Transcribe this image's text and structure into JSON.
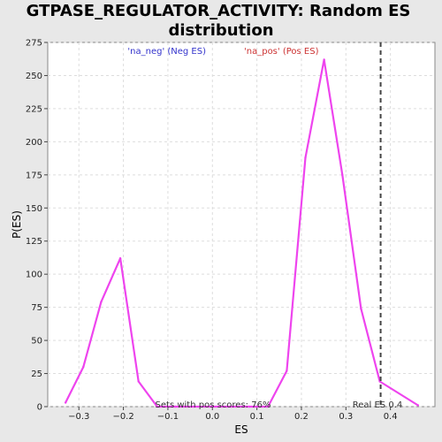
{
  "chart_data": {
    "type": "line",
    "title_line1": "GTPASE_REGULATOR_ACTIVITY: Random ES",
    "title_line2": "distribution",
    "xlabel": "ES",
    "ylabel": "P(ES)",
    "xlim": [
      -0.37,
      0.5
    ],
    "ylim": [
      0,
      275
    ],
    "xticks": [
      -0.3,
      -0.2,
      -0.1,
      0.0,
      0.1,
      0.2,
      0.3,
      0.4
    ],
    "xtick_labels": [
      "−0.3",
      "−0.2",
      "−0.1",
      "0.0",
      "0.1",
      "0.2",
      "0.3",
      "0.4"
    ],
    "yticks": [
      0,
      25,
      50,
      75,
      100,
      125,
      150,
      175,
      200,
      225,
      250,
      275
    ],
    "ytick_labels": [
      "0",
      "25",
      "50",
      "75",
      "100",
      "125",
      "150",
      "175",
      "200",
      "225",
      "250",
      "275"
    ],
    "grid": true,
    "legend_neg": "'na_neg' (Neg ES)",
    "legend_pos": "'na_pos' (Pos ES)",
    "legend_neg_color": "#3333cc",
    "legend_pos_color": "#cc3333",
    "line_color": "#ee44ee",
    "series": [
      {
        "x": [
          -0.33,
          -0.29,
          -0.25,
          -0.207,
          -0.166,
          -0.124,
          -0.083,
          -0.041,
          0.0,
          0.042,
          0.083,
          0.125,
          0.167,
          0.209,
          0.251,
          0.292,
          0.334,
          0.376,
          0.462
        ],
        "values": [
          3,
          30,
          79,
          112,
          19,
          0,
          0,
          0,
          0,
          0,
          0,
          0,
          27,
          188,
          262,
          175,
          74,
          19,
          1
        ]
      }
    ],
    "real_es_value": 0.378,
    "real_es_label": "Real ES 0.4",
    "pos_scores_label": "Sets with pos scores: 76%"
  }
}
